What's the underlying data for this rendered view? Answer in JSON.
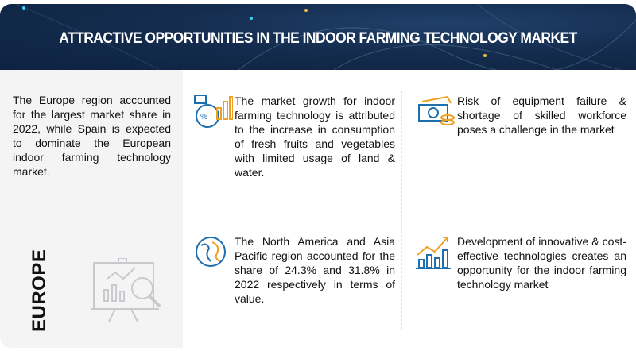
{
  "header": {
    "title": "ATTRACTIVE OPPORTUNITIES IN THE INDOOR FARMING TECHNOLOGY MARKET"
  },
  "left_panel": {
    "summary": "The Europe region accounted for the largest market share in 2022, while Spain is expected to dominate the European indoor farming technology market.",
    "region_label": "EUROPE",
    "icon": "presentation-analytics-icon"
  },
  "cards": [
    {
      "icon": "growth-chart-icon",
      "text": "The market growth for indoor farming technology is attributed to the increase in consumption of fresh fruits and vegetables with limited usage of land & water."
    },
    {
      "icon": "money-icon",
      "text": "Risk of equipment failure & shortage of skilled workforce poses a challenge in the market"
    },
    {
      "icon": "globe-icon",
      "text": "The North America and Asia Pacific region accounted for the share of 24.3% and 31.8% in 2022 respectively in terms of value."
    },
    {
      "icon": "bar-growth-icon",
      "text": "Development of innovative & cost-effective technologies creates an opportunity for the indoor farming technology market"
    }
  ],
  "colors": {
    "header_bg": "#142c4e",
    "accent_orange": "#f0a020",
    "accent_blue": "#1e6fb0"
  }
}
